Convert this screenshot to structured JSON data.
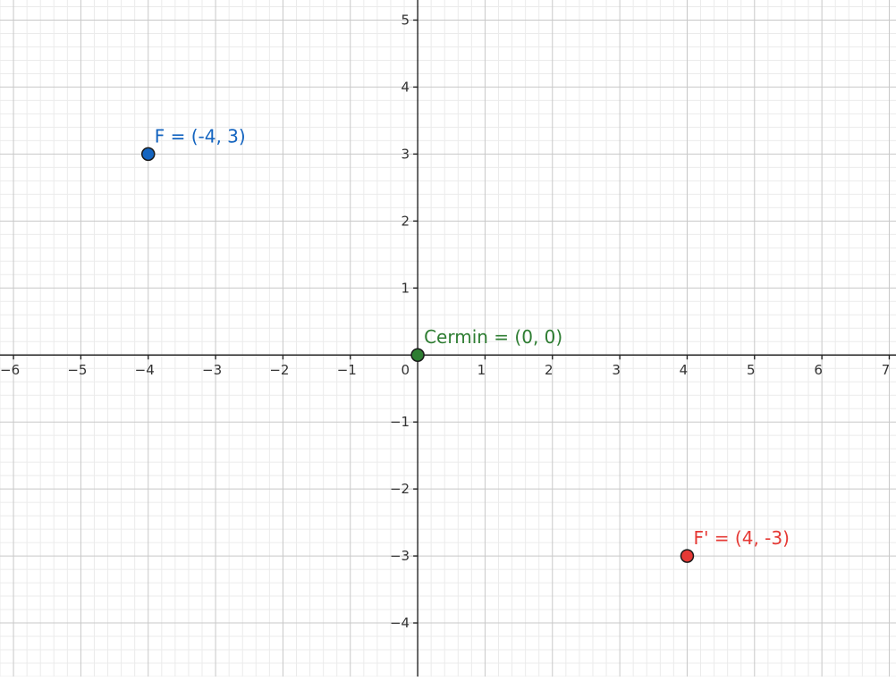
{
  "chart_data": {
    "type": "scatter",
    "title": "",
    "xlabel": "",
    "ylabel": "",
    "xlim": [
      -6.2,
      7.1
    ],
    "ylim": [
      -4.8,
      5.3
    ],
    "grid": true,
    "x_ticks": [
      -6,
      -5,
      -4,
      -3,
      -2,
      -1,
      1,
      2,
      3,
      4,
      5,
      6,
      7
    ],
    "x_tick_labels": [
      "−6",
      "−5",
      "−4",
      "−3",
      "−2",
      "−1",
      "1",
      "2",
      "3",
      "4",
      "5",
      "6",
      "7"
    ],
    "y_ticks": [
      5,
      4,
      3,
      2,
      1,
      -1,
      -2,
      -3,
      -4
    ],
    "y_tick_labels": [
      "5",
      "4",
      "3",
      "2",
      "1",
      "−1",
      "−2",
      "−3",
      "−4"
    ],
    "origin_label": "0",
    "points": [
      {
        "label": "F = (-4, 3)",
        "x": -4,
        "y": 3,
        "color": "#1565c0",
        "label_color": "#1565c0"
      },
      {
        "label": "Cermin = (0, 0)",
        "x": 0,
        "y": 0,
        "color": "#2e7d32",
        "label_color": "#2e7d32"
      },
      {
        "label": "F' = (4, -3)",
        "x": 4,
        "y": -3,
        "color": "#e53935",
        "label_color": "#e53935"
      }
    ]
  }
}
